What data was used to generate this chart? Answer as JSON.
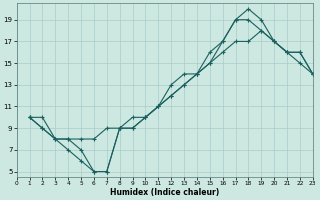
{
  "xlabel": "Humidex (Indice chaleur)",
  "bg_color": "#cce8e0",
  "grid_color": "#aacccc",
  "line_color": "#1a6060",
  "xlim": [
    0,
    23
  ],
  "ylim": [
    4.5,
    20.5
  ],
  "xticks": [
    0,
    1,
    2,
    3,
    4,
    5,
    6,
    7,
    8,
    9,
    10,
    11,
    12,
    13,
    14,
    15,
    16,
    17,
    18,
    19,
    20,
    21,
    22,
    23
  ],
  "yticks": [
    5,
    7,
    9,
    11,
    13,
    15,
    17,
    19
  ],
  "series1_x": [
    1,
    2,
    3,
    4,
    5,
    6,
    7,
    8,
    9,
    10,
    11,
    12,
    13,
    14,
    15,
    16,
    17,
    18,
    19,
    20,
    21,
    22,
    23
  ],
  "series1_y": [
    10,
    10,
    8,
    8,
    8,
    8,
    9,
    9,
    10,
    10,
    11,
    13,
    14,
    14,
    16,
    17,
    19,
    19,
    18,
    17,
    16,
    15,
    14
  ],
  "series2_x": [
    1,
    2,
    3,
    4,
    5,
    6,
    7,
    8,
    9,
    10,
    11,
    12,
    13,
    14,
    15,
    16,
    17,
    18,
    19,
    20,
    21,
    22,
    23
  ],
  "series2_y": [
    10,
    9,
    8,
    8,
    7,
    5,
    5,
    9,
    9,
    10,
    11,
    12,
    13,
    14,
    15,
    17,
    19,
    20,
    19,
    17,
    16,
    16,
    14
  ],
  "series3_x": [
    1,
    2,
    3,
    4,
    5,
    6,
    7,
    8,
    9,
    10,
    11,
    12,
    13,
    14,
    15,
    16,
    17,
    18,
    19,
    20,
    21,
    22,
    23
  ],
  "series3_y": [
    10,
    9,
    8,
    7,
    6,
    5,
    5,
    9,
    9,
    10,
    11,
    12,
    13,
    14,
    15,
    16,
    17,
    17,
    18,
    17,
    16,
    16,
    14
  ]
}
